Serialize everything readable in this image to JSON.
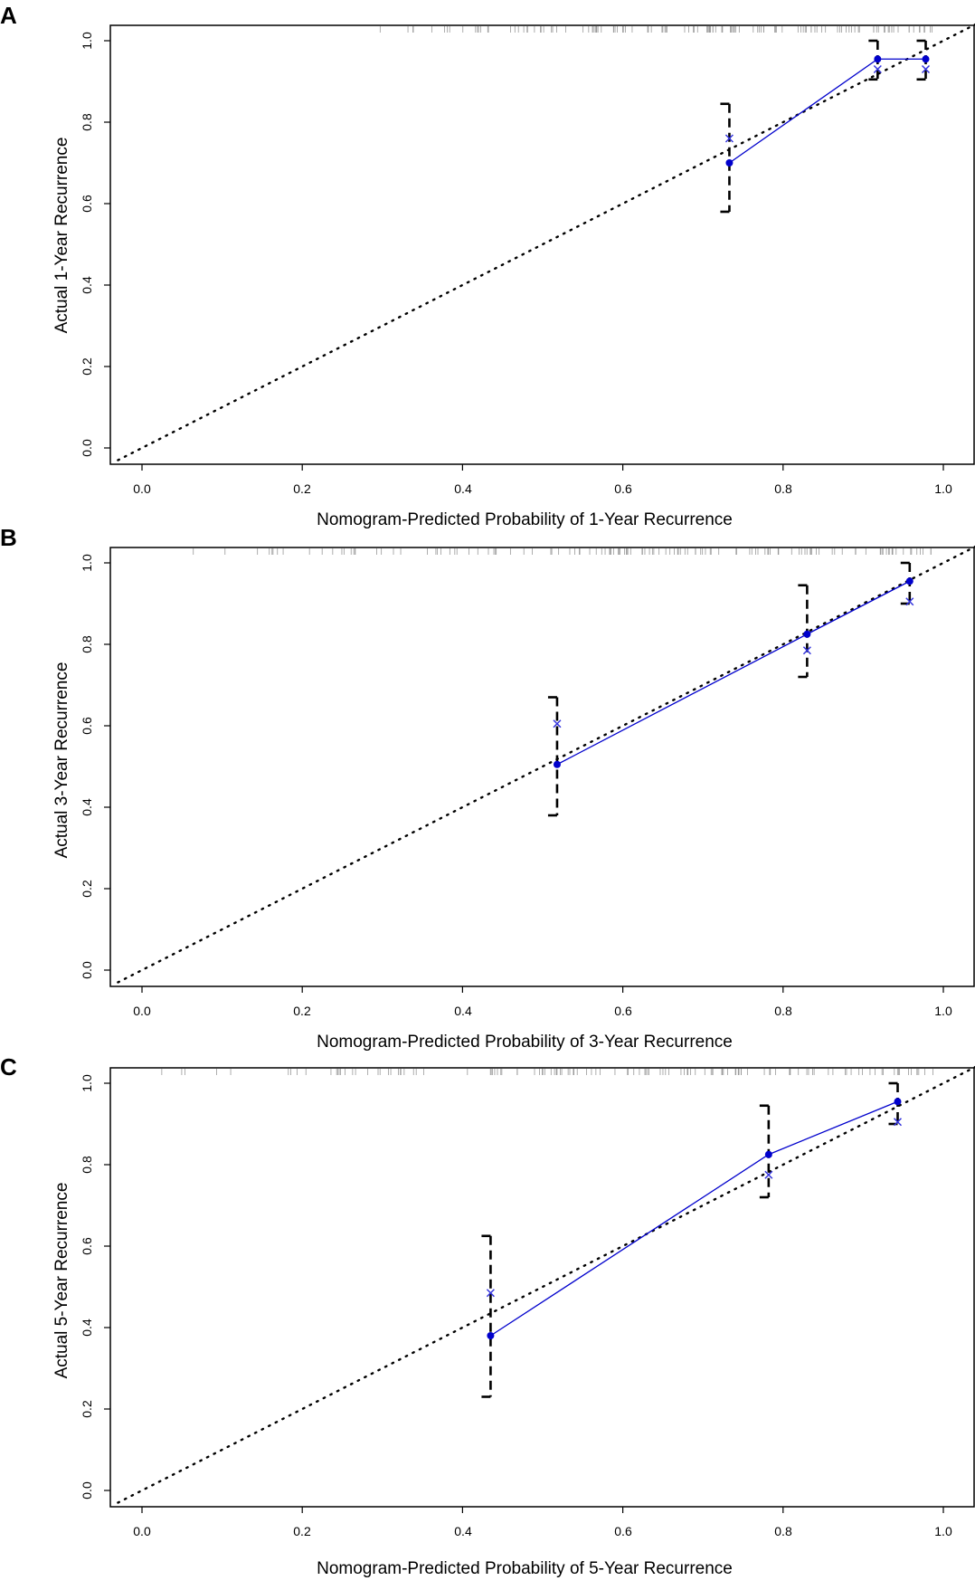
{
  "chart_data": [
    {
      "panel": "A",
      "type": "line",
      "xlabel": "Nomogram-Predicted Probability of 1-Year Recurrence",
      "ylabel": "Actual 1-Year Recurrence",
      "xlim": [
        -0.03,
        1.04
      ],
      "ylim": [
        -0.03,
        1.05
      ],
      "xticks": [
        "0.0",
        "0.2",
        "0.4",
        "0.6",
        "0.8",
        "1.0"
      ],
      "yticks": [
        "0.0",
        "0.2",
        "0.4",
        "0.6",
        "0.8",
        "1.0"
      ],
      "series": [
        {
          "name": "observed",
          "x": [
            0.733,
            0.918,
            0.978
          ],
          "y": [
            0.7,
            0.955,
            0.955
          ]
        },
        {
          "name": "bias-corrected",
          "x": [
            0.733,
            0.918,
            0.978
          ],
          "y": [
            0.76,
            0.93,
            0.93
          ]
        },
        {
          "name": "ci",
          "x": [
            0.733,
            0.918,
            0.978
          ],
          "lower": [
            0.58,
            0.905,
            0.905
          ],
          "upper": [
            0.845,
            1.0,
            1.0
          ]
        }
      ],
      "rug_range": [
        0.26,
        0.99
      ]
    },
    {
      "panel": "B",
      "type": "line",
      "xlabel": "Nomogram-Predicted Probability of 3-Year Recurrence",
      "ylabel": "Actual 3-Year Recurrence",
      "xlim": [
        -0.03,
        1.04
      ],
      "ylim": [
        -0.03,
        1.05
      ],
      "xticks": [
        "0.0",
        "0.2",
        "0.4",
        "0.6",
        "0.8",
        "1.0"
      ],
      "yticks": [
        "0.0",
        "0.2",
        "0.4",
        "0.6",
        "0.8",
        "1.0"
      ],
      "series": [
        {
          "name": "observed",
          "x": [
            0.518,
            0.83,
            0.958
          ],
          "y": [
            0.505,
            0.825,
            0.955
          ]
        },
        {
          "name": "bias-corrected",
          "x": [
            0.518,
            0.83,
            0.958
          ],
          "y": [
            0.605,
            0.785,
            0.905
          ]
        },
        {
          "name": "ci",
          "x": [
            0.518,
            0.83,
            0.958
          ],
          "lower": [
            0.38,
            0.72,
            0.9
          ],
          "upper": [
            0.67,
            0.945,
            1.0
          ]
        }
      ],
      "rug_range": [
        0.05,
        0.99
      ]
    },
    {
      "panel": "C",
      "type": "line",
      "xlabel": "Nomogram-Predicted Probability of 5-Year Recurrence",
      "ylabel": "Actual 5-Year Recurrence",
      "xlim": [
        -0.03,
        1.04
      ],
      "ylim": [
        -0.03,
        1.05
      ],
      "xticks": [
        "0.0",
        "0.2",
        "0.4",
        "0.6",
        "0.8",
        "1.0"
      ],
      "yticks": [
        "0.0",
        "0.2",
        "0.4",
        "0.6",
        "0.8",
        "1.0"
      ],
      "series": [
        {
          "name": "observed",
          "x": [
            0.435,
            0.782,
            0.943
          ],
          "y": [
            0.38,
            0.825,
            0.955
          ]
        },
        {
          "name": "bias-corrected",
          "x": [
            0.435,
            0.782,
            0.943
          ],
          "y": [
            0.485,
            0.775,
            0.905
          ]
        },
        {
          "name": "ci",
          "x": [
            0.435,
            0.782,
            0.943
          ],
          "lower": [
            0.23,
            0.72,
            0.9
          ],
          "upper": [
            0.625,
            0.945,
            1.0
          ]
        }
      ],
      "rug_range": [
        0.02,
        0.99
      ]
    }
  ],
  "colors": {
    "observed": "#0000cc",
    "bias": "#3333dd",
    "ideal": "#000000",
    "ci": "#000000",
    "rug": "#999999"
  }
}
